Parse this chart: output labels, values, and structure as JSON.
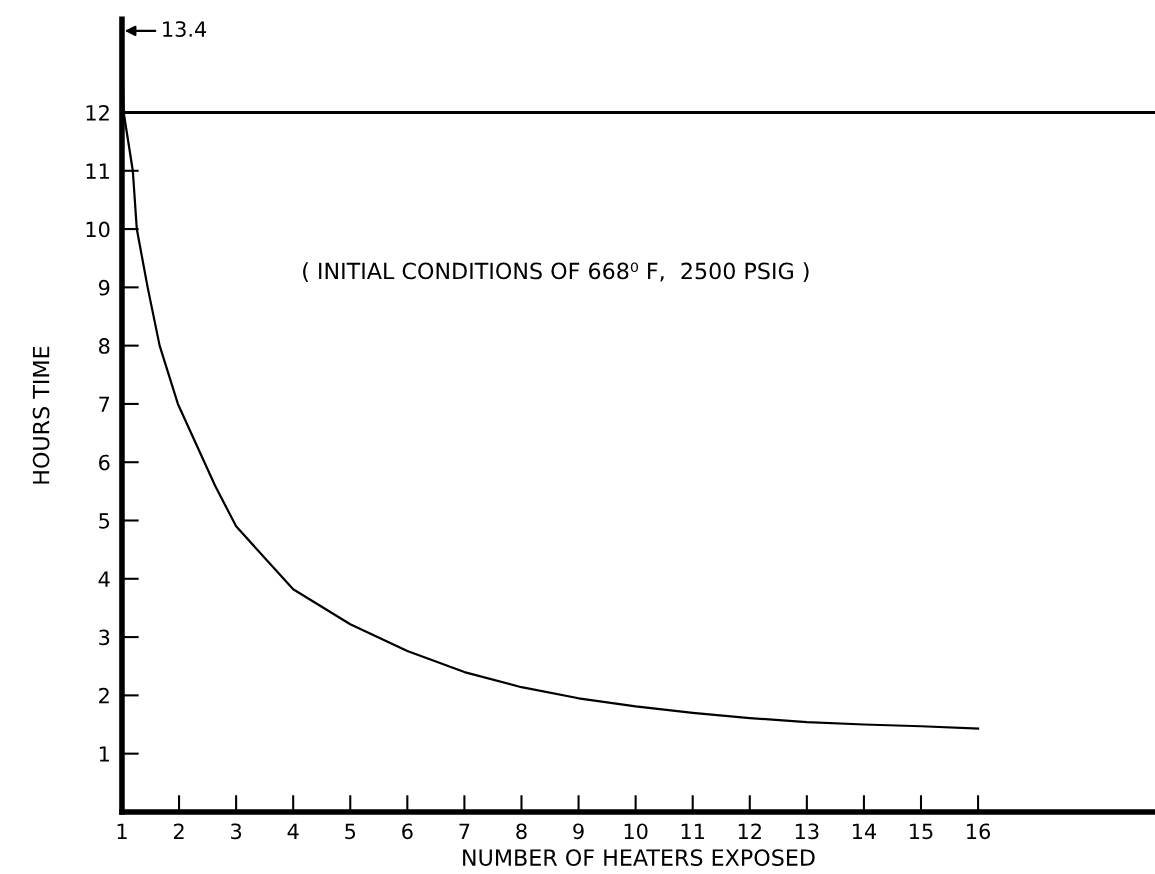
{
  "chart_data": {
    "type": "line",
    "xlabel": "NUMBER OF HEATERS EXPOSED",
    "ylabel": "HOURS TIME",
    "xlim": [
      1,
      19.1
    ],
    "ylim": [
      0,
      13.6
    ],
    "xticks": [
      1,
      2,
      3,
      4,
      5,
      6,
      7,
      8,
      9,
      10,
      11,
      12,
      13,
      14,
      15,
      16
    ],
    "yticks": [
      1,
      2,
      3,
      4,
      5,
      6,
      7,
      8,
      9,
      10,
      11,
      12
    ],
    "series": [
      {
        "color": "#000000",
        "x": [
          1,
          1.03,
          1.19,
          1.26,
          1.45,
          1.66,
          1.98,
          2.63,
          3,
          4,
          5,
          6,
          7,
          8,
          9,
          10,
          11,
          12,
          13,
          14,
          15,
          16
        ],
        "values": [
          13.4,
          12,
          11,
          10,
          9,
          8,
          7,
          5.6,
          4.9,
          3.82,
          3.22,
          2.76,
          2.4,
          2.14,
          1.95,
          1.81,
          1.7,
          1.61,
          1.54,
          1.5,
          1.47,
          1.43
        ]
      }
    ],
    "ref_lines": [
      {
        "axis": "y",
        "value": 12,
        "color": "#000000",
        "line_style": "solid"
      }
    ],
    "annotations": [
      {
        "text": "13.4",
        "x": 1,
        "y": 13.4
      },
      "( INITIAL CONDITIONS OF 668⁰ F,  2500 PSIG )"
    ],
    "grid": false,
    "legend": false,
    "marker": "none",
    "line_style": "solid"
  }
}
